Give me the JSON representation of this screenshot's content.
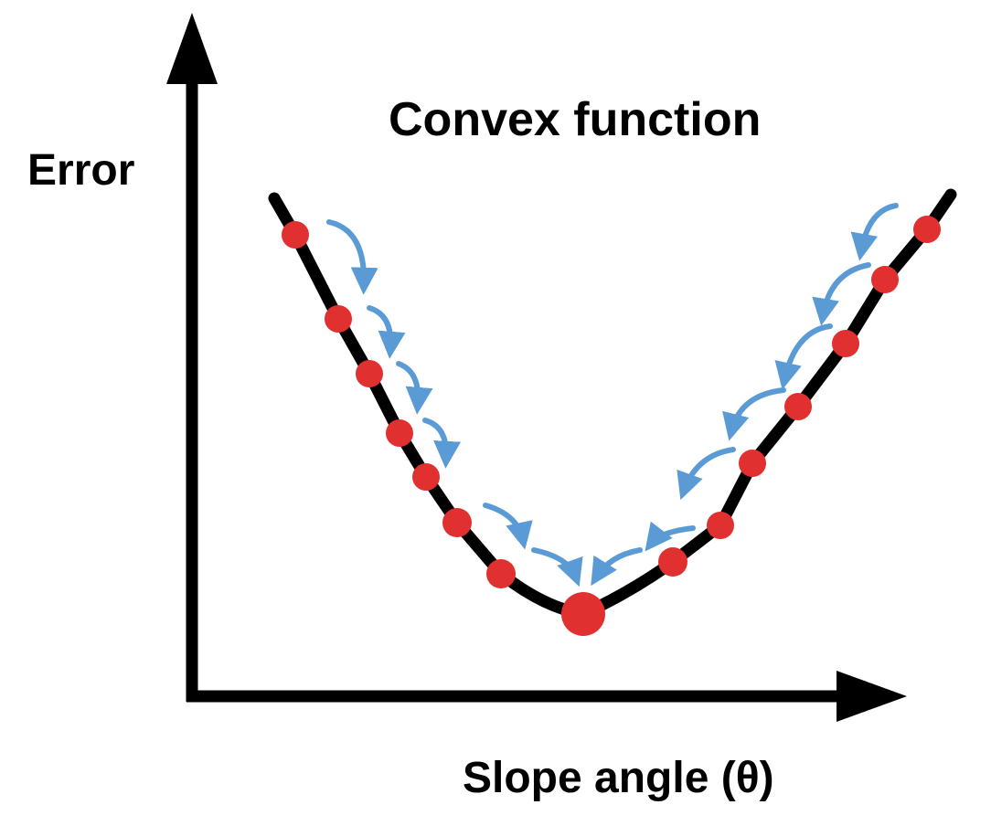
{
  "title": "Convex function",
  "y_axis_label": "Error",
  "x_axis_label": "Slope angle (θ)",
  "colors": {
    "curve": "#000000",
    "points": "#e03030",
    "step_arrows": "#5b9bd5",
    "axes": "#000000"
  },
  "icons": {
    "step_arrow": "curved-arrow-icon",
    "axis_arrowhead": "arrowhead-icon"
  }
}
